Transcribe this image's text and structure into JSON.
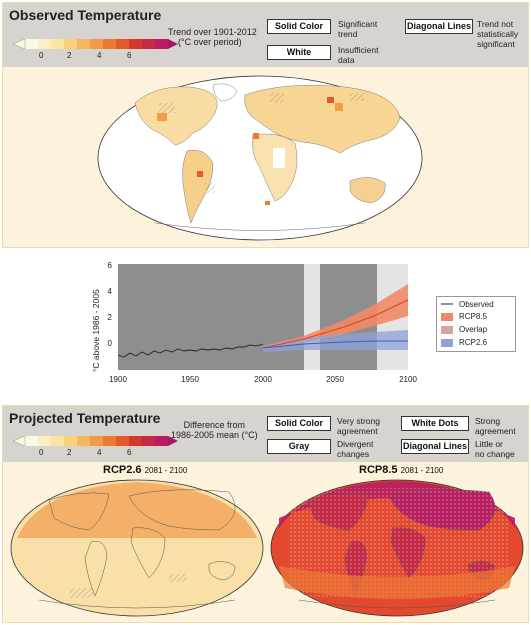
{
  "observed": {
    "title": "Observed Temperature",
    "scale_ticks": [
      "0",
      "2",
      "4",
      "6"
    ],
    "trend_line1": "Trend over 1901-2012",
    "trend_line2": "(°C over period)",
    "legend": {
      "solid_label": "Solid Color",
      "solid_desc1": "Significant",
      "solid_desc2": "trend",
      "white_label": "White",
      "white_desc1": "Insufficient",
      "white_desc2": "data",
      "diag_label": "Diagonal Lines",
      "diag_desc1": "Trend not",
      "diag_desc2": "statistically",
      "diag_desc3": "significant"
    }
  },
  "projected": {
    "title": "Projected Temperature",
    "scale_ticks": [
      "0",
      "2",
      "4",
      "6"
    ],
    "diff_line1": "Difference from",
    "diff_line2": "1986-2005 mean (°C)",
    "legend": {
      "solid_label": "Solid Color",
      "solid_desc1": "Very strong",
      "solid_desc2": "agreement",
      "gray_label": "Gray",
      "gray_desc1": "Divergent",
      "gray_desc2": "changes",
      "dots_label": "White Dots",
      "dots_desc1": "Strong",
      "dots_desc2": "agreement",
      "diag_label": "Diagonal Lines",
      "diag_desc1": "Little or",
      "diag_desc2": "no change"
    },
    "map_left_title": "RCP2.6",
    "map_left_period": "2081 - 2100",
    "map_right_title": "RCP8.5",
    "map_right_period": "2081 - 2100"
  },
  "timeseries": {
    "ylabel": "°C above 1986 - 2005",
    "y_ticks": [
      "6",
      "4",
      "2",
      "0"
    ],
    "x_ticks": [
      "1900",
      "1950",
      "2000",
      "2050",
      "2100"
    ],
    "legend": [
      "Observed",
      "RCP8.5",
      "Overlap",
      "RCP2.6"
    ]
  },
  "colors": {
    "scale": [
      "#fdf8e6",
      "#fcefc4",
      "#fbe3a3",
      "#f9d07e",
      "#f6b760",
      "#f29c48",
      "#ec7a35",
      "#e05a2b",
      "#d13a2b",
      "#c42a45",
      "#b81f60",
      "#a31670"
    ],
    "observed_line": "#333333",
    "rcp85": "#f0683c",
    "overlap": "#d8a0a8",
    "rcp26": "#8da3d8"
  }
}
